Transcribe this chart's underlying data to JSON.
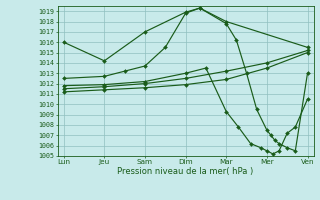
{
  "background_color": "#c8eaea",
  "grid_color": "#90c0c0",
  "line_color": "#1a5c1a",
  "xlabel": "Pression niveau de la mer( hPa )",
  "ylim_low": 1005,
  "ylim_high": 1019.5,
  "yticks": [
    1005,
    1006,
    1007,
    1008,
    1009,
    1010,
    1011,
    1012,
    1013,
    1014,
    1015,
    1016,
    1017,
    1018,
    1019
  ],
  "x_labels": [
    "Lun",
    "Jeu",
    "Sam",
    "Dim",
    "Mar",
    "Mer",
    "Ven"
  ],
  "x_ticks": [
    0,
    1,
    2,
    3,
    4,
    5,
    6
  ],
  "xlim_low": -0.15,
  "xlim_high": 6.15,
  "line1_x": [
    0,
    1,
    2,
    3,
    3.35,
    4,
    6
  ],
  "line1_y": [
    1016.0,
    1014.2,
    1017.0,
    1018.9,
    1019.3,
    1018.0,
    1015.5
  ],
  "line2_x": [
    0,
    1,
    1.5,
    2,
    2.5,
    3,
    3.35,
    4,
    4.25,
    4.5,
    4.75,
    5.0,
    5.1,
    5.2,
    5.3,
    5.5,
    5.7,
    6
  ],
  "line2_y": [
    1012.5,
    1012.7,
    1013.2,
    1013.7,
    1015.5,
    1018.8,
    1019.3,
    1017.8,
    1016.2,
    1013.0,
    1009.5,
    1007.5,
    1007.0,
    1006.5,
    1006.2,
    1005.8,
    1005.5,
    1013.0
  ],
  "line3_x": [
    0,
    1,
    2,
    3,
    4,
    5,
    6
  ],
  "line3_y": [
    1011.5,
    1011.7,
    1012.0,
    1012.5,
    1013.2,
    1014.0,
    1015.2
  ],
  "line4_x": [
    0,
    1,
    2,
    3,
    4,
    5,
    6
  ],
  "line4_y": [
    1011.2,
    1011.4,
    1011.6,
    1011.9,
    1012.4,
    1013.5,
    1015.0
  ],
  "line5_x": [
    0,
    1,
    2,
    3,
    3.5,
    4,
    4.3,
    4.6,
    4.85,
    5.0,
    5.15,
    5.3,
    5.5,
    5.7,
    6
  ],
  "line5_y": [
    1011.8,
    1011.9,
    1012.2,
    1013.0,
    1013.5,
    1009.3,
    1007.8,
    1006.2,
    1005.8,
    1005.5,
    1005.2,
    1005.5,
    1007.2,
    1007.8,
    1010.5
  ]
}
